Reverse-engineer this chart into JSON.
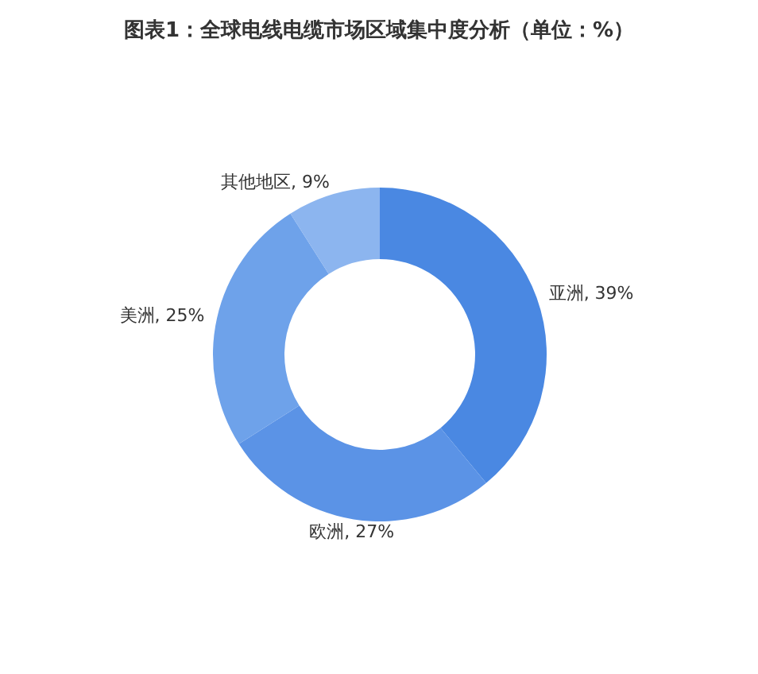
{
  "chart_data": {
    "type": "donut",
    "title": "图表1：全球电线电缆市场区域集中度分析（单位：%）",
    "categories": [
      "亚洲",
      "欧洲",
      "美洲",
      "其他地区"
    ],
    "values": [
      39,
      27,
      25,
      9
    ],
    "value_labels": [
      "39%",
      "27%",
      "25%",
      "9%"
    ],
    "colors": [
      "#4a88e2",
      "#5b93e6",
      "#6ea2ea",
      "#8cb5ef"
    ]
  }
}
